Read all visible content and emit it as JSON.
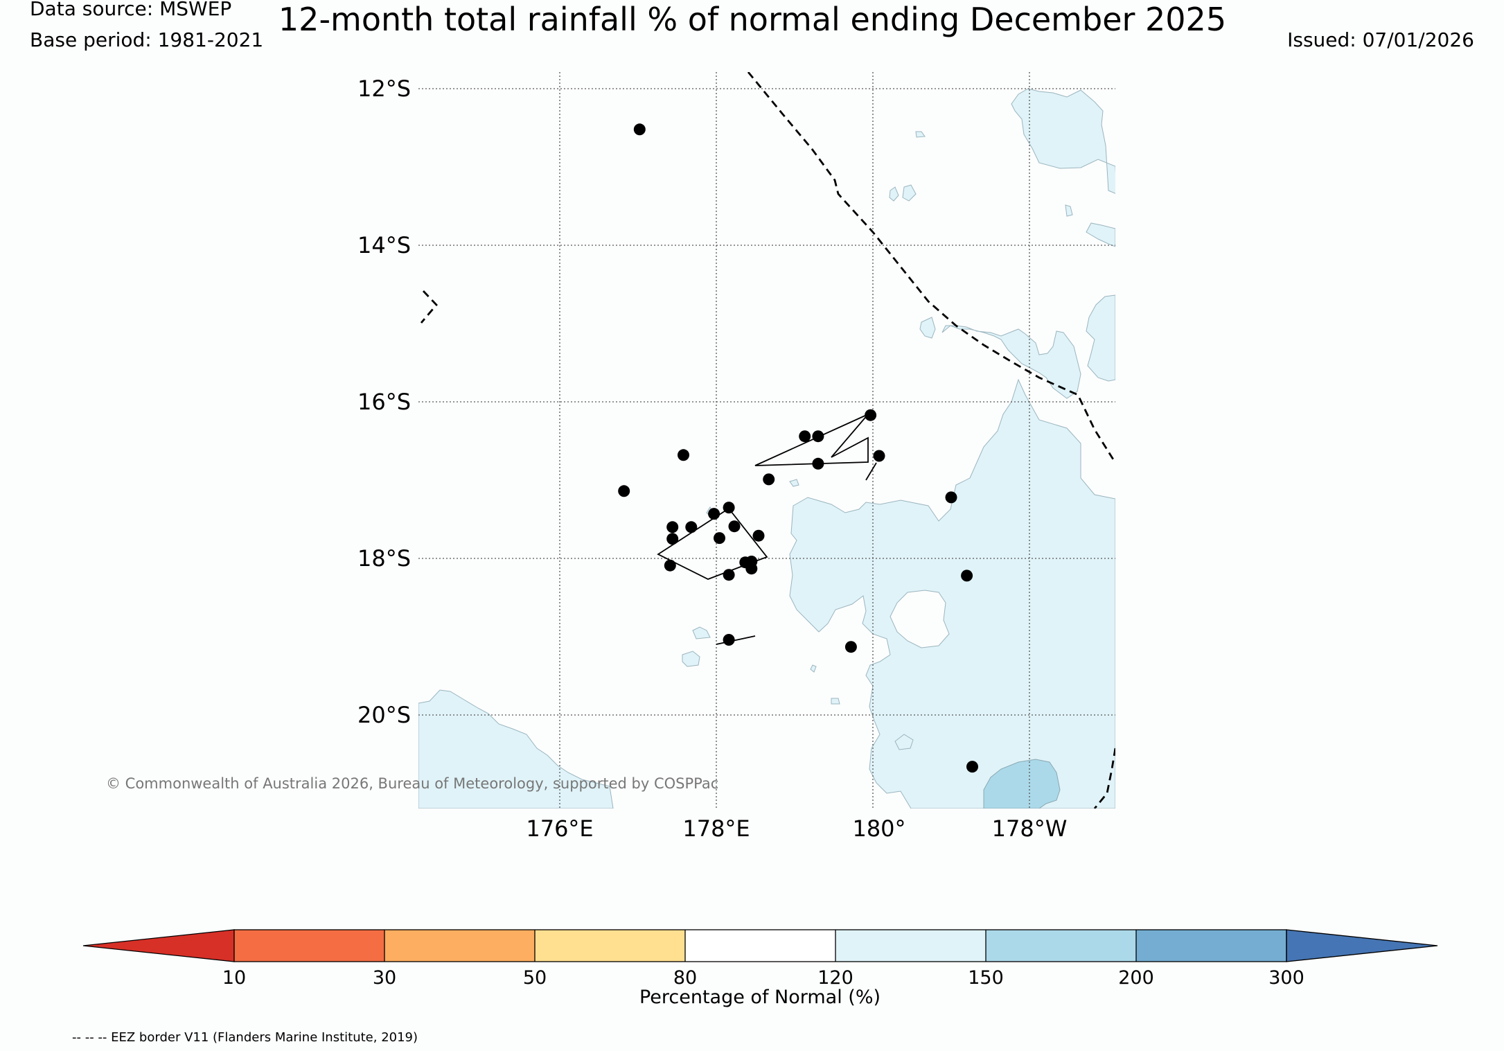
{
  "header": {
    "data_source": "Data source: MSWEP",
    "base_period": "Base period: 1981-2021",
    "title": "12-month total rainfall % of normal ending December 2025",
    "issued": "Issued: 07/01/2026"
  },
  "map": {
    "lat_labels": [
      "12°S",
      "14°S",
      "16°S",
      "18°S",
      "20°S"
    ],
    "lon_labels": [
      "176°E",
      "178°E",
      "180°",
      "178°W"
    ],
    "lat_values": [
      -12,
      -14,
      -16,
      -18,
      -20
    ],
    "lon_values": [
      176,
      178,
      180,
      182
    ],
    "extent": {
      "lon_min": 174.2,
      "lon_max": 183.1,
      "lat_top": -11.8,
      "lat_bottom": -21.2
    },
    "copyright": "© Commonwealth of Australia 2026, Bureau of Meteorology, supported by COSPPac",
    "colors": {
      "band_120_150": "#e0f3f8",
      "band_150_200": "#abd9e9",
      "land_outline": "#000000",
      "eez_border": "#000000",
      "stations": "#000000"
    },
    "stations": [
      {
        "lon": 177.02,
        "lat": -12.52
      },
      {
        "lon": 179.97,
        "lat": -16.17
      },
      {
        "lon": 179.13,
        "lat": -16.44
      },
      {
        "lon": 179.3,
        "lat": -16.44
      },
      {
        "lon": 177.58,
        "lat": -16.68
      },
      {
        "lon": 180.08,
        "lat": -16.69
      },
      {
        "lon": 179.3,
        "lat": -16.79
      },
      {
        "lon": 178.67,
        "lat": -16.99
      },
      {
        "lon": 176.82,
        "lat": -17.14
      },
      {
        "lon": 181.0,
        "lat": -17.22
      },
      {
        "lon": 178.16,
        "lat": -17.35
      },
      {
        "lon": 177.97,
        "lat": -17.43
      },
      {
        "lon": 177.44,
        "lat": -17.6
      },
      {
        "lon": 177.68,
        "lat": -17.6
      },
      {
        "lon": 178.23,
        "lat": -17.59
      },
      {
        "lon": 178.54,
        "lat": -17.71
      },
      {
        "lon": 177.44,
        "lat": -17.75
      },
      {
        "lon": 178.04,
        "lat": -17.74
      },
      {
        "lon": 178.37,
        "lat": -18.05
      },
      {
        "lon": 178.45,
        "lat": -18.04
      },
      {
        "lon": 177.41,
        "lat": -18.09
      },
      {
        "lon": 178.45,
        "lat": -18.13
      },
      {
        "lon": 178.16,
        "lat": -18.21
      },
      {
        "lon": 181.2,
        "lat": -18.22
      },
      {
        "lon": 178.16,
        "lat": -19.04
      },
      {
        "lon": 179.72,
        "lat": -19.13
      },
      {
        "lon": 181.27,
        "lat": -20.66
      }
    ]
  },
  "colorbar": {
    "title": "Percentage of Normal (%)",
    "tick_labels": [
      "10",
      "30",
      "50",
      "80",
      "120",
      "150",
      "200",
      "300"
    ],
    "colors": [
      "#d73027",
      "#f46d43",
      "#fdae61",
      "#fee090",
      "#ffffff",
      "#e0f3f8",
      "#abd9e9",
      "#74add1",
      "#4575b4"
    ]
  },
  "footnote": "-- -- -- EEZ border V11 (Flanders Marine Institute, 2019)"
}
